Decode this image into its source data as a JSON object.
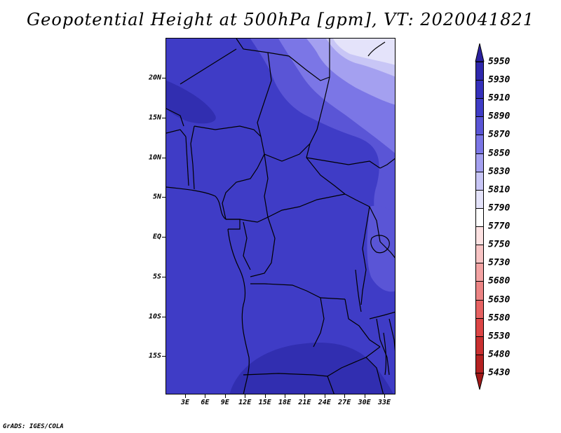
{
  "title": "Geopotential Height at 500hPa [gpm], VT: 2020041821",
  "credit": "GrADS: IGES/COLA",
  "map": {
    "lat_labels": [
      "20N",
      "15N",
      "10N",
      "5N",
      "EQ",
      "5S",
      "10S",
      "15S"
    ],
    "lon_labels": [
      "3E",
      "6E",
      "9E",
      "12E",
      "15E",
      "18E",
      "21E",
      "24E",
      "27E",
      "30E",
      "33E"
    ],
    "fill_colors": {
      "base": "#3f3cc6",
      "light1": "#5a55d6",
      "light2": "#7b76e6",
      "light3": "#a4a0f0",
      "light4": "#c8c6f6",
      "lightest": "#e4e3fa",
      "dark": "#312eb0",
      "boundary": "#000000"
    }
  },
  "colorbar": {
    "labels": [
      "5950",
      "5930",
      "5910",
      "5890",
      "5870",
      "5850",
      "5830",
      "5810",
      "5790",
      "5770",
      "5750",
      "5730",
      "5680",
      "5630",
      "5580",
      "5530",
      "5480",
      "5430"
    ],
    "colors": [
      "#2a209e",
      "#2f28ad",
      "#3530bb",
      "#3f3cc6",
      "#5a55d6",
      "#7b76e6",
      "#a4a0f0",
      "#c8c6f6",
      "#e4e3fa",
      "#ffffff",
      "#fde2e2",
      "#f8c4c4",
      "#f3a3a3",
      "#ec8484",
      "#e66262",
      "#dc4545",
      "#c93030",
      "#b52222",
      "#a11818"
    ]
  }
}
